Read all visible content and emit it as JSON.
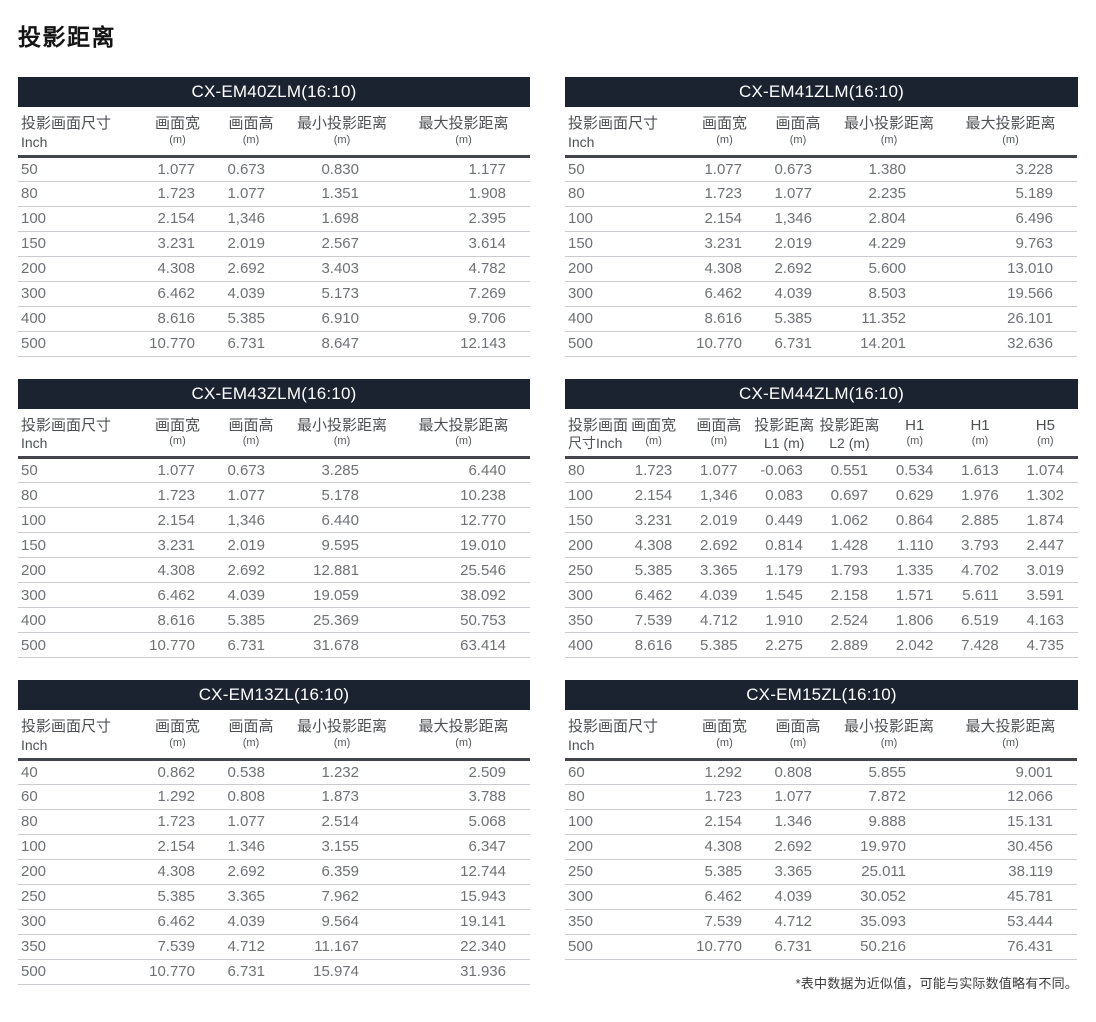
{
  "title": "投影距离",
  "footnote": "*表中数据为近似值，可能与实际数值略有不同。",
  "colors": {
    "table_header_bar_bg": "#1c2330",
    "table_header_bar_text": "#ffffff",
    "column_header_text": "#4d5055",
    "cell_text": "#6e7175",
    "row_divider": "#c9cbce",
    "header_rule": "#42464c"
  },
  "tables": [
    {
      "model": "CX-EM40ZLM(16:10)",
      "columns": [
        {
          "line1": "投影画面尺寸",
          "line2": "Inch"
        },
        {
          "line1": "画面宽",
          "line2": "(m)"
        },
        {
          "line1": "画面高",
          "line2": "(m)"
        },
        {
          "line1": "最小投影距离",
          "line2": "(m)"
        },
        {
          "line1": "最大投影距离",
          "line2": "(m)"
        }
      ],
      "rows": [
        [
          "50",
          "1.077",
          "0.673",
          "0.830",
          "1.177"
        ],
        [
          "80",
          "1.723",
          "1.077",
          "1.351",
          "1.908"
        ],
        [
          "100",
          "2.154",
          "1,346",
          "1.698",
          "2.395"
        ],
        [
          "150",
          "3.231",
          "2.019",
          "2.567",
          "3.614"
        ],
        [
          "200",
          "4.308",
          "2.692",
          "3.403",
          "4.782"
        ],
        [
          "300",
          "6.462",
          "4.039",
          "5.173",
          "7.269"
        ],
        [
          "400",
          "8.616",
          "5.385",
          "6.910",
          "9.706"
        ],
        [
          "500",
          "10.770",
          "6.731",
          "8.647",
          "12.143"
        ]
      ]
    },
    {
      "model": "CX-EM41ZLM(16:10)",
      "columns": [
        {
          "line1": "投影画面尺寸",
          "line2": "Inch"
        },
        {
          "line1": "画面宽",
          "line2": "(m)"
        },
        {
          "line1": "画面高",
          "line2": "(m)"
        },
        {
          "line1": "最小投影距离",
          "line2": "(m)"
        },
        {
          "line1": "最大投影距离",
          "line2": "(m)"
        }
      ],
      "rows": [
        [
          "50",
          "1.077",
          "0.673",
          "1.380",
          "3.228"
        ],
        [
          "80",
          "1.723",
          "1.077",
          "2.235",
          "5.189"
        ],
        [
          "100",
          "2.154",
          "1,346",
          "2.804",
          "6.496"
        ],
        [
          "150",
          "3.231",
          "2.019",
          "4.229",
          "9.763"
        ],
        [
          "200",
          "4.308",
          "2.692",
          "5.600",
          "13.010"
        ],
        [
          "300",
          "6.462",
          "4.039",
          "8.503",
          "19.566"
        ],
        [
          "400",
          "8.616",
          "5.385",
          "11.352",
          "26.101"
        ],
        [
          "500",
          "10.770",
          "6.731",
          "14.201",
          "32.636"
        ]
      ]
    },
    {
      "model": "CX-EM43ZLM(16:10)",
      "columns": [
        {
          "line1": "投影画面尺寸",
          "line2": "Inch"
        },
        {
          "line1": "画面宽",
          "line2": "(m)"
        },
        {
          "line1": "画面高",
          "line2": "(m)"
        },
        {
          "line1": "最小投影距离",
          "line2": "(m)"
        },
        {
          "line1": "最大投影距离",
          "line2": "(m)"
        }
      ],
      "rows": [
        [
          "50",
          "1.077",
          "0.673",
          "3.285",
          "6.440"
        ],
        [
          "80",
          "1.723",
          "1.077",
          "5.178",
          "10.238"
        ],
        [
          "100",
          "2.154",
          "1,346",
          "6.440",
          "12.770"
        ],
        [
          "150",
          "3.231",
          "2.019",
          "9.595",
          "19.010"
        ],
        [
          "200",
          "4.308",
          "2.692",
          "12.881",
          "25.546"
        ],
        [
          "300",
          "6.462",
          "4.039",
          "19.059",
          "38.092"
        ],
        [
          "400",
          "8.616",
          "5.385",
          "25.369",
          "50.753"
        ],
        [
          "500",
          "10.770",
          "6.731",
          "31.678",
          "63.414"
        ]
      ]
    },
    {
      "model": "CX-EM44ZLM(16:10)",
      "columns": [
        {
          "line1": "投影画面",
          "line2": "尺寸Inch"
        },
        {
          "line1": "画面宽",
          "line2": "(m)"
        },
        {
          "line1": "画面高",
          "line2": "(m)"
        },
        {
          "line1": "投影距离",
          "line2": "L1 (m)"
        },
        {
          "line1": "投影距离",
          "line2": "L2 (m)"
        },
        {
          "line1": "H1",
          "line2": "(m)"
        },
        {
          "line1": "H1",
          "line2": "(m)"
        },
        {
          "line1": "H5",
          "line2": "(m)"
        }
      ],
      "rows": [
        [
          "80",
          "1.723",
          "1.077",
          "-0.063",
          "0.551",
          "0.534",
          "1.613",
          "1.074"
        ],
        [
          "100",
          "2.154",
          "1,346",
          "0.083",
          "0.697",
          "0.629",
          "1.976",
          "1.302"
        ],
        [
          "150",
          "3.231",
          "2.019",
          "0.449",
          "1.062",
          "0.864",
          "2.885",
          "1.874"
        ],
        [
          "200",
          "4.308",
          "2.692",
          "0.814",
          "1.428",
          "1.110",
          "3.793",
          "2.447"
        ],
        [
          "250",
          "5.385",
          "3.365",
          "1.179",
          "1.793",
          "1.335",
          "4.702",
          "3.019"
        ],
        [
          "300",
          "6.462",
          "4.039",
          "1.545",
          "2.158",
          "1.571",
          "5.611",
          "3.591"
        ],
        [
          "350",
          "7.539",
          "4.712",
          "1.910",
          "2.524",
          "1.806",
          "6.519",
          "4.163"
        ],
        [
          "400",
          "8.616",
          "5.385",
          "2.275",
          "2.889",
          "2.042",
          "7.428",
          "4.735"
        ]
      ]
    },
    {
      "model": "CX-EM13ZL(16:10)",
      "columns": [
        {
          "line1": "投影画面尺寸",
          "line2": "Inch"
        },
        {
          "line1": "画面宽",
          "line2": "(m)"
        },
        {
          "line1": "画面高",
          "line2": "(m)"
        },
        {
          "line1": "最小投影距离",
          "line2": "(m)"
        },
        {
          "line1": "最大投影距离",
          "line2": "(m)"
        }
      ],
      "rows": [
        [
          "40",
          "0.862",
          "0.538",
          "1.232",
          "2.509"
        ],
        [
          "60",
          "1.292",
          "0.808",
          "1.873",
          "3.788"
        ],
        [
          "80",
          "1.723",
          "1.077",
          "2.514",
          "5.068"
        ],
        [
          "100",
          "2.154",
          "1.346",
          "3.155",
          "6.347"
        ],
        [
          "200",
          "4.308",
          "2.692",
          "6.359",
          "12.744"
        ],
        [
          "250",
          "5.385",
          "3.365",
          "7.962",
          "15.943"
        ],
        [
          "300",
          "6.462",
          "4.039",
          "9.564",
          "19.141"
        ],
        [
          "350",
          "7.539",
          "4.712",
          "11.167",
          "22.340"
        ],
        [
          "500",
          "10.770",
          "6.731",
          "15.974",
          "31.936"
        ]
      ]
    },
    {
      "model": "CX-EM15ZL(16:10)",
      "columns": [
        {
          "line1": "投影画面尺寸",
          "line2": "Inch"
        },
        {
          "line1": "画面宽",
          "line2": "(m)"
        },
        {
          "line1": "画面高",
          "line2": "(m)"
        },
        {
          "line1": "最小投影距离",
          "line2": "(m)"
        },
        {
          "line1": "最大投影距离",
          "line2": "(m)"
        }
      ],
      "rows": [
        [
          "60",
          "1.292",
          "0.808",
          "5.855",
          "9.001"
        ],
        [
          "80",
          "1.723",
          "1.077",
          "7.872",
          "12.066"
        ],
        [
          "100",
          "2.154",
          "1.346",
          "9.888",
          "15.131"
        ],
        [
          "200",
          "4.308",
          "2.692",
          "19.970",
          "30.456"
        ],
        [
          "250",
          "5.385",
          "3.365",
          "25.011",
          "38.119"
        ],
        [
          "300",
          "6.462",
          "4.039",
          "30.052",
          "45.781"
        ],
        [
          "350",
          "7.539",
          "4.712",
          "35.093",
          "53.444"
        ],
        [
          "500",
          "10.770",
          "6.731",
          "50.216",
          "76.431"
        ]
      ]
    }
  ]
}
